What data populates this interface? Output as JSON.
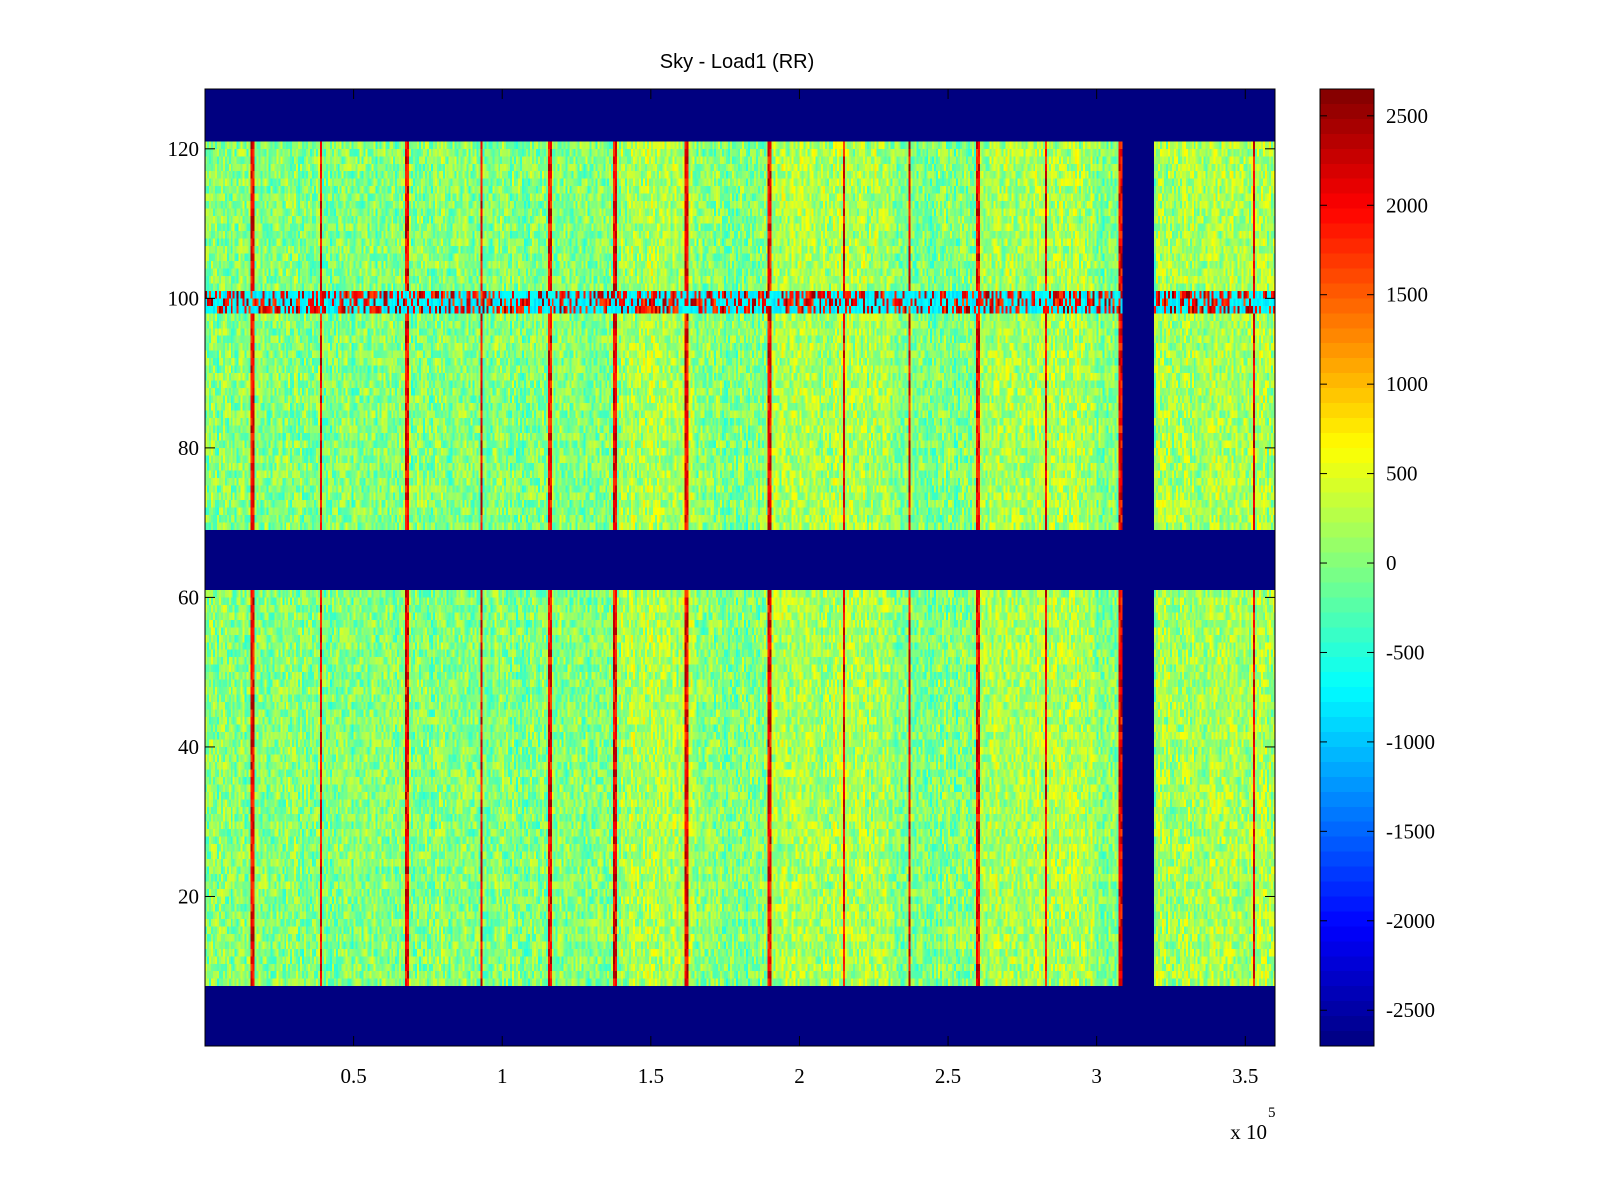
{
  "chart_data": {
    "type": "heatmap",
    "title": "Sky - Load1 (RR)",
    "xlabel": "",
    "ylabel": "",
    "x_exponent_label": "x 10",
    "x_exponent": "5",
    "xlim": [
      0,
      3.6
    ],
    "ylim": [
      0,
      128
    ],
    "x_ticks": [
      {
        "value": 0.5,
        "label": "0.5"
      },
      {
        "value": 1,
        "label": "1"
      },
      {
        "value": 1.5,
        "label": "1.5"
      },
      {
        "value": 2,
        "label": "2"
      },
      {
        "value": 2.5,
        "label": "2.5"
      },
      {
        "value": 3,
        "label": "3"
      },
      {
        "value": 3.5,
        "label": "3.5"
      }
    ],
    "y_ticks": [
      {
        "value": 20,
        "label": "20"
      },
      {
        "value": 40,
        "label": "40"
      },
      {
        "value": 60,
        "label": "60"
      },
      {
        "value": 80,
        "label": "80"
      },
      {
        "value": 100,
        "label": "100"
      },
      {
        "value": 120,
        "label": "120"
      }
    ],
    "colorbar": {
      "colormap": "jet",
      "clim": [
        -2700,
        2650
      ],
      "ticks": [
        {
          "value": 2500,
          "label": "2500"
        },
        {
          "value": 2000,
          "label": "2000"
        },
        {
          "value": 1500,
          "label": "1500"
        },
        {
          "value": 1000,
          "label": "1000"
        },
        {
          "value": 500,
          "label": "500"
        },
        {
          "value": 0,
          "label": "0"
        },
        {
          "value": -500,
          "label": "-500"
        },
        {
          "value": -1000,
          "label": "-1000"
        },
        {
          "value": -1500,
          "label": "-1500"
        },
        {
          "value": -2000,
          "label": "-2000"
        },
        {
          "value": -2500,
          "label": "-2500"
        }
      ]
    },
    "masked_value": -2700,
    "background_value": 0,
    "masked_y_bands": [
      [
        0,
        7.5
      ],
      [
        61.5,
        68.5
      ],
      [
        121.5,
        128
      ]
    ],
    "masked_x_bands": [
      [
        3.085,
        3.19
      ]
    ],
    "hot_columns_x": [
      0.16,
      0.39,
      0.68,
      0.93,
      1.16,
      1.38,
      1.62,
      1.9,
      2.15,
      2.37,
      2.6,
      2.83,
      3.08,
      3.53
    ],
    "hot_row_y": [
      98.5,
      101
    ],
    "warm_regions_x": [
      [
        1.4,
        1.65
      ],
      [
        1.9,
        2.3
      ],
      [
        2.6,
        3.0
      ],
      [
        3.2,
        3.6
      ]
    ]
  }
}
